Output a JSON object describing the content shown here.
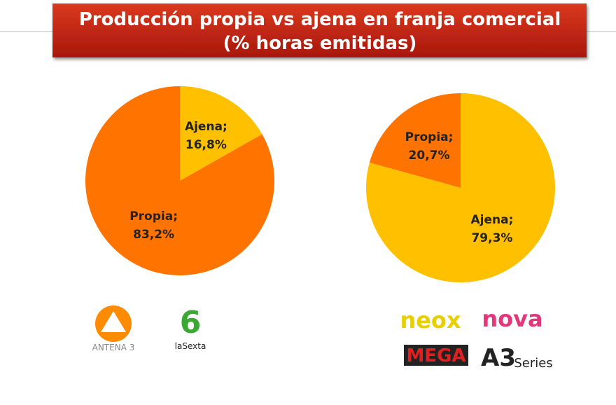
{
  "title": [
    "Producción propia vs ajena en franja comercial",
    "(% horas emitidas)"
  ],
  "chart_data": [
    {
      "type": "pie",
      "categories": [
        "Ajena;",
        "Propia;"
      ],
      "values": [
        16.8,
        83.2
      ],
      "value_labels": [
        "16,8%",
        "83,2%"
      ],
      "colors": [
        "#ffc000",
        "#ff7300"
      ]
    },
    {
      "type": "pie",
      "categories": [
        "Ajena;",
        "Propia;"
      ],
      "values": [
        79.3,
        20.7
      ],
      "value_labels": [
        "79,3%",
        "20,7%"
      ],
      "colors": [
        "#ffc000",
        "#ff7300"
      ]
    }
  ],
  "logos": {
    "left": [
      "ANTENA 3",
      "laSexta"
    ],
    "right": [
      "neox",
      "nova",
      "MEGA",
      "A3",
      "Series"
    ]
  }
}
